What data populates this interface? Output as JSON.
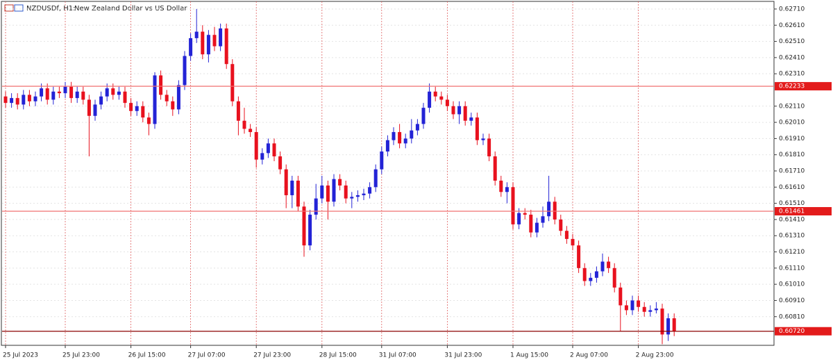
{
  "chart_data": {
    "type": "candlestick",
    "symbol": "NZDUSDf, H1:",
    "title": "New Zealand Dollar vs US Dollar",
    "up_color": "#2323d6",
    "down_color": "#e8111e",
    "ylim": [
      0.60633,
      0.62757
    ],
    "yticks": [
      {
        "value": 0.6271,
        "label": "0.62710"
      },
      {
        "value": 0.6261,
        "label": "0.62610"
      },
      {
        "value": 0.6251,
        "label": "0.62510"
      },
      {
        "value": 0.6241,
        "label": "0.62410"
      },
      {
        "value": 0.6231,
        "label": "0.62310"
      },
      {
        "value": 0.6211,
        "label": "0.62110"
      },
      {
        "value": 0.6201,
        "label": "0.62010"
      },
      {
        "value": 0.6191,
        "label": "0.61910"
      },
      {
        "value": 0.6181,
        "label": "0.61810"
      },
      {
        "value": 0.6171,
        "label": "0.61710"
      },
      {
        "value": 0.6161,
        "label": "0.61610"
      },
      {
        "value": 0.6151,
        "label": "0.61510"
      },
      {
        "value": 0.6141,
        "label": "0.61410"
      },
      {
        "value": 0.6131,
        "label": "0.61310"
      },
      {
        "value": 0.6121,
        "label": "0.61210"
      },
      {
        "value": 0.6111,
        "label": "0.61110"
      },
      {
        "value": 0.6101,
        "label": "0.61010"
      },
      {
        "value": 0.6091,
        "label": "0.60910"
      },
      {
        "value": 0.6081,
        "label": "0.60810"
      }
    ],
    "levels": [
      {
        "value": 0.62233,
        "label": "0.62233",
        "color": "#f07070"
      },
      {
        "value": 0.61461,
        "label": "0.61461",
        "color": "#f07070"
      },
      {
        "value": 0.6072,
        "label": "0.60720",
        "color": "#8b0000"
      }
    ],
    "grid": true,
    "categories": [
      "25 Jul 2023",
      null,
      null,
      null,
      null,
      null,
      null,
      null,
      null,
      null,
      "25 Jul 23:00",
      null,
      null,
      null,
      null,
      null,
      null,
      null,
      null,
      null,
      null,
      "26 Jul 15:00",
      null,
      null,
      null,
      null,
      null,
      null,
      null,
      null,
      null,
      "27 Jul 07:00",
      null,
      null,
      null,
      null,
      null,
      null,
      null,
      null,
      null,
      null,
      "27 Jul 23:00",
      null,
      null,
      null,
      null,
      null,
      null,
      null,
      null,
      null,
      null,
      "28 Jul 15:00",
      null,
      null,
      null,
      null,
      null,
      null,
      null,
      null,
      null,
      "31 Jul 07:00",
      null,
      null,
      null,
      null,
      null,
      null,
      null,
      null,
      null,
      null,
      "31 Jul 23:00",
      null,
      null,
      null,
      null,
      null,
      null,
      null,
      null,
      null,
      null,
      "1 Aug 15:00",
      null,
      null,
      null,
      null,
      null,
      null,
      null,
      null,
      null,
      "2 Aug 07:00",
      null,
      null,
      null,
      null,
      null,
      null,
      null,
      null,
      null,
      null,
      "2 Aug 23:00",
      null,
      null,
      null,
      null,
      null,
      null
    ],
    "ohlc": [
      [
        0.6217,
        0.622,
        0.621,
        0.6213
      ],
      [
        0.6213,
        0.6219,
        0.621,
        0.6216
      ],
      [
        0.6216,
        0.6219,
        0.6209,
        0.6212
      ],
      [
        0.6212,
        0.6221,
        0.6209,
        0.6218
      ],
      [
        0.6218,
        0.6221,
        0.6211,
        0.6214
      ],
      [
        0.6214,
        0.622,
        0.6211,
        0.6217
      ],
      [
        0.6217,
        0.6225,
        0.6214,
        0.6222
      ],
      [
        0.6222,
        0.6225,
        0.6212,
        0.6215
      ],
      [
        0.6215,
        0.6223,
        0.6212,
        0.622
      ],
      [
        0.622,
        0.6223,
        0.6216,
        0.6219
      ],
      [
        0.6219,
        0.6226,
        0.6216,
        0.6223
      ],
      [
        0.6223,
        0.6226,
        0.6213,
        0.6216
      ],
      [
        0.6216,
        0.6223,
        0.6213,
        0.622
      ],
      [
        0.622,
        0.6223,
        0.6212,
        0.6215
      ],
      [
        0.6215,
        0.6218,
        0.618,
        0.6205
      ],
      [
        0.6205,
        0.6215,
        0.6202,
        0.6212
      ],
      [
        0.6212,
        0.622,
        0.6209,
        0.6217
      ],
      [
        0.6217,
        0.6225,
        0.6214,
        0.6222
      ],
      [
        0.6222,
        0.6225,
        0.6215,
        0.6218
      ],
      [
        0.6218,
        0.6223,
        0.6215,
        0.622
      ],
      [
        0.622,
        0.6223,
        0.621,
        0.6213
      ],
      [
        0.6213,
        0.6216,
        0.6205,
        0.6208
      ],
      [
        0.6208,
        0.6214,
        0.6205,
        0.6211
      ],
      [
        0.6211,
        0.6214,
        0.6201,
        0.6204
      ],
      [
        0.6204,
        0.6207,
        0.6193,
        0.62
      ],
      [
        0.62,
        0.6232,
        0.6197,
        0.623
      ],
      [
        0.623,
        0.6233,
        0.6215,
        0.6218
      ],
      [
        0.6218,
        0.6221,
        0.6211,
        0.6214
      ],
      [
        0.6214,
        0.6217,
        0.6205,
        0.6209
      ],
      [
        0.6209,
        0.6227,
        0.6206,
        0.6224
      ],
      [
        0.6224,
        0.6245,
        0.6221,
        0.6242
      ],
      [
        0.6242,
        0.6256,
        0.6239,
        0.6253
      ],
      [
        0.6253,
        0.6271,
        0.625,
        0.6257
      ],
      [
        0.6257,
        0.6261,
        0.624,
        0.6243
      ],
      [
        0.6243,
        0.6258,
        0.6238,
        0.6255
      ],
      [
        0.6255,
        0.626,
        0.6245,
        0.6248
      ],
      [
        0.6248,
        0.6262,
        0.6245,
        0.6259
      ],
      [
        0.6259,
        0.6262,
        0.6234,
        0.6237
      ],
      [
        0.6237,
        0.624,
        0.6211,
        0.6214
      ],
      [
        0.6214,
        0.6217,
        0.6193,
        0.6202
      ],
      [
        0.6202,
        0.621,
        0.6194,
        0.6197
      ],
      [
        0.6197,
        0.62,
        0.6192,
        0.6195
      ],
      [
        0.6195,
        0.6198,
        0.6173,
        0.6178
      ],
      [
        0.6178,
        0.6185,
        0.6175,
        0.6182
      ],
      [
        0.6182,
        0.6191,
        0.6179,
        0.6188
      ],
      [
        0.6188,
        0.6191,
        0.6177,
        0.618
      ],
      [
        0.618,
        0.6183,
        0.6169,
        0.6172
      ],
      [
        0.6172,
        0.6175,
        0.6148,
        0.6156
      ],
      [
        0.6156,
        0.6168,
        0.6148,
        0.6165
      ],
      [
        0.6165,
        0.6168,
        0.6146,
        0.6149
      ],
      [
        0.6149,
        0.6152,
        0.6118,
        0.6125
      ],
      [
        0.6125,
        0.6147,
        0.6122,
        0.6144
      ],
      [
        0.6144,
        0.6163,
        0.6141,
        0.6154
      ],
      [
        0.6154,
        0.6168,
        0.6151,
        0.6162
      ],
      [
        0.6162,
        0.6165,
        0.6141,
        0.6152
      ],
      [
        0.6152,
        0.6169,
        0.6149,
        0.6166
      ],
      [
        0.6166,
        0.6169,
        0.6159,
        0.6162
      ],
      [
        0.6162,
        0.6165,
        0.6151,
        0.6154
      ],
      [
        0.6154,
        0.6158,
        0.6148,
        0.6155
      ],
      [
        0.6155,
        0.6159,
        0.6152,
        0.6156
      ],
      [
        0.6156,
        0.616,
        0.6153,
        0.6157
      ],
      [
        0.6157,
        0.6164,
        0.6154,
        0.6161
      ],
      [
        0.6161,
        0.6175,
        0.6158,
        0.6172
      ],
      [
        0.6172,
        0.6186,
        0.6169,
        0.6183
      ],
      [
        0.6183,
        0.6193,
        0.618,
        0.619
      ],
      [
        0.619,
        0.6198,
        0.6187,
        0.6195
      ],
      [
        0.6195,
        0.62,
        0.6185,
        0.6188
      ],
      [
        0.6188,
        0.6194,
        0.6185,
        0.6191
      ],
      [
        0.6191,
        0.6203,
        0.6188,
        0.6196
      ],
      [
        0.6196,
        0.6203,
        0.6193,
        0.62
      ],
      [
        0.62,
        0.6213,
        0.6197,
        0.621
      ],
      [
        0.621,
        0.6225,
        0.6207,
        0.622
      ],
      [
        0.622,
        0.6223,
        0.6214,
        0.6217
      ],
      [
        0.6217,
        0.622,
        0.6212,
        0.6215
      ],
      [
        0.6215,
        0.6218,
        0.6208,
        0.6211
      ],
      [
        0.6211,
        0.6214,
        0.6203,
        0.6206
      ],
      [
        0.6206,
        0.6214,
        0.62,
        0.6211
      ],
      [
        0.6211,
        0.6214,
        0.6199,
        0.6202
      ],
      [
        0.6202,
        0.6207,
        0.6199,
        0.6204
      ],
      [
        0.6204,
        0.6207,
        0.6187,
        0.619
      ],
      [
        0.619,
        0.6194,
        0.6187,
        0.6191
      ],
      [
        0.6191,
        0.6194,
        0.6177,
        0.618
      ],
      [
        0.618,
        0.6183,
        0.6162,
        0.6165
      ],
      [
        0.6165,
        0.6168,
        0.6155,
        0.6158
      ],
      [
        0.6158,
        0.6164,
        0.6151,
        0.6161
      ],
      [
        0.6161,
        0.6164,
        0.6135,
        0.6138
      ],
      [
        0.6138,
        0.6148,
        0.6135,
        0.6145
      ],
      [
        0.6145,
        0.6148,
        0.6141,
        0.6144
      ],
      [
        0.6144,
        0.6147,
        0.613,
        0.6133
      ],
      [
        0.6133,
        0.6142,
        0.613,
        0.6139
      ],
      [
        0.6139,
        0.6149,
        0.6136,
        0.6143
      ],
      [
        0.6143,
        0.6168,
        0.614,
        0.6152
      ],
      [
        0.6152,
        0.6155,
        0.6138,
        0.6141
      ],
      [
        0.6141,
        0.6144,
        0.6131,
        0.6134
      ],
      [
        0.6134,
        0.6137,
        0.6126,
        0.6129
      ],
      [
        0.6129,
        0.6132,
        0.6122,
        0.6125
      ],
      [
        0.6125,
        0.6128,
        0.6108,
        0.6111
      ],
      [
        0.6111,
        0.6114,
        0.61,
        0.6103
      ],
      [
        0.6103,
        0.6108,
        0.61,
        0.6105
      ],
      [
        0.6105,
        0.6112,
        0.6102,
        0.6109
      ],
      [
        0.6109,
        0.612,
        0.6106,
        0.6115
      ],
      [
        0.6115,
        0.6118,
        0.6108,
        0.6111
      ],
      [
        0.6111,
        0.6114,
        0.6096,
        0.6099
      ],
      [
        0.6099,
        0.6102,
        0.6072,
        0.6088
      ],
      [
        0.6088,
        0.6091,
        0.6082,
        0.6085
      ],
      [
        0.6085,
        0.6094,
        0.6082,
        0.6091
      ],
      [
        0.6091,
        0.6094,
        0.6084,
        0.6087
      ],
      [
        0.6087,
        0.609,
        0.6081,
        0.6084
      ],
      [
        0.6084,
        0.6088,
        0.6081,
        0.6085
      ],
      [
        0.6085,
        0.609,
        0.6083,
        0.6086
      ],
      [
        0.6086,
        0.6089,
        0.6064,
        0.607
      ],
      [
        0.607,
        0.6083,
        0.6066,
        0.608
      ],
      [
        0.608,
        0.6083,
        0.6069,
        0.6072
      ]
    ]
  }
}
